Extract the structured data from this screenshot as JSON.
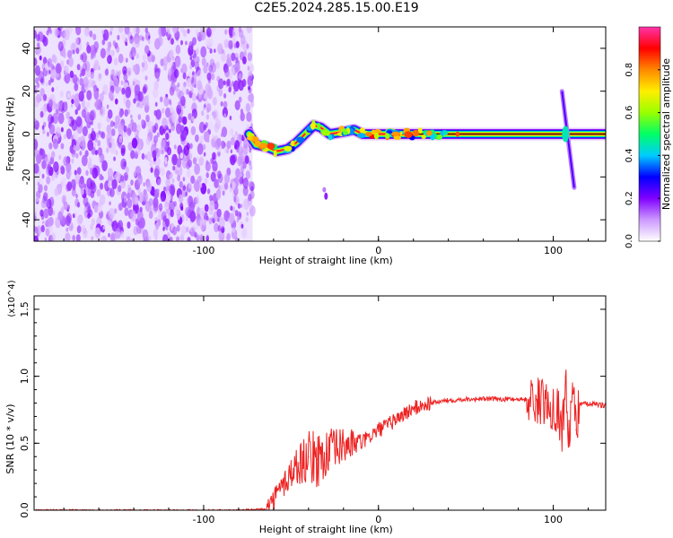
{
  "title": "C2E5.2024.285.15.00.E19",
  "chart_data": [
    {
      "type": "heatmap",
      "title": "C2E5.2024.285.15.00.E19",
      "xlabel": "Height of straight line (km)",
      "ylabel": "Frequency (Hz)",
      "xlim": [
        -197,
        130
      ],
      "ylim": [
        -50,
        50
      ],
      "x_ticks": [
        -100,
        0,
        100
      ],
      "x_tick_labels": [
        "-100",
        "0",
        "100"
      ],
      "y_ticks": [
        -40,
        -20,
        0,
        20,
        40
      ],
      "y_tick_labels": [
        "-40",
        "-20",
        "0",
        "20",
        "40"
      ],
      "colorbar": {
        "label": "Normalized spectral amplitude",
        "range": [
          0,
          1
        ],
        "ticks": [
          0.0,
          0.2,
          0.4,
          0.6,
          0.8
        ],
        "tick_labels": [
          "0.0",
          "0.2",
          "0.4",
          "0.6",
          "0.8"
        ],
        "colors": [
          "#ffffff",
          "#cc99ff",
          "#8000ff",
          "#0000ff",
          "#00ccff",
          "#00ff66",
          "#99ff00",
          "#ffee00",
          "#ff8800",
          "#ff0000",
          "#ff33aa"
        ]
      },
      "features": [
        {
          "name": "noise",
          "x_range": [
            -197,
            -72
          ],
          "freq_range": [
            -50,
            50
          ],
          "amplitude": 0.1
        },
        {
          "name": "signal trace",
          "points": [
            [
              -74,
              0
            ],
            [
              -70,
              -5
            ],
            [
              -64,
              -6
            ],
            [
              -58,
              -8
            ],
            [
              -52,
              -7
            ],
            [
              -47,
              -4
            ],
            [
              -42,
              0
            ],
            [
              -37,
              4
            ],
            [
              -33,
              3
            ],
            [
              -28,
              0
            ],
            [
              -20,
              1
            ],
            [
              -14,
              2
            ],
            [
              -9,
              0
            ],
            [
              0,
              0
            ],
            [
              20,
              0
            ],
            [
              60,
              0
            ],
            [
              100,
              0
            ],
            [
              130,
              0
            ]
          ],
          "amplitude": 0.9
        },
        {
          "name": "spike",
          "x": 107,
          "freq_range": [
            -25,
            20
          ]
        }
      ]
    },
    {
      "type": "line",
      "xlabel": "Height of straight line (km)",
      "ylabel": "SNR (10 * v/v)",
      "y_multiplier": "(x10^4)",
      "xlim": [
        -197,
        130
      ],
      "ylim": [
        0,
        1.6
      ],
      "x_ticks": [
        -100,
        0,
        100
      ],
      "x_tick_labels": [
        "-100",
        "0",
        "100"
      ],
      "y_ticks": [
        0.0,
        0.5,
        1.0,
        1.5
      ],
      "y_tick_labels": [
        "0.0",
        "0.5",
        "1.0",
        "1.5"
      ],
      "color": "#ee2222",
      "series": [
        {
          "x": [
            -197,
            -160,
            -120,
            -80,
            -65,
            -60,
            -55,
            -50,
            -45,
            -40,
            -35,
            -30,
            -25,
            -20,
            -15,
            -10,
            -5,
            0,
            5,
            10,
            15,
            20,
            30,
            40,
            50,
            60,
            70,
            80,
            90,
            95,
            100,
            103,
            105,
            107,
            109,
            111,
            113,
            115,
            120,
            125,
            130
          ],
          "y": [
            0.0,
            0.0,
            0.0,
            0.0,
            0.01,
            0.08,
            0.18,
            0.28,
            0.35,
            0.4,
            0.38,
            0.42,
            0.45,
            0.48,
            0.5,
            0.5,
            0.55,
            0.6,
            0.63,
            0.68,
            0.72,
            0.76,
            0.8,
            0.82,
            0.83,
            0.83,
            0.83,
            0.83,
            0.82,
            0.8,
            0.78,
            0.75,
            0.55,
            1.0,
            0.5,
            0.95,
            0.6,
            0.8,
            0.79,
            0.79,
            0.78
          ]
        }
      ]
    }
  ]
}
